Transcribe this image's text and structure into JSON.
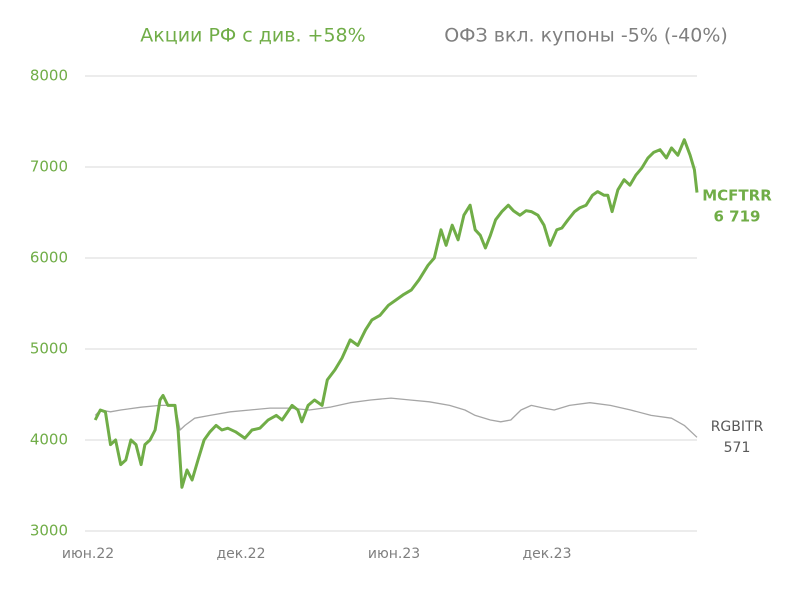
{
  "chart_data": {
    "type": "line",
    "xlim": [
      0,
      24
    ],
    "ylim": [
      3000,
      8000
    ],
    "xticks": [
      {
        "value": 0,
        "label": "июн.22"
      },
      {
        "value": 6,
        "label": "дек.22"
      },
      {
        "value": 12,
        "label": "июн.23"
      },
      {
        "value": 18,
        "label": "дек.23"
      }
    ],
    "yticks": [
      3000,
      4000,
      5000,
      6000,
      7000,
      8000
    ],
    "grid": true,
    "series": [
      {
        "name": "Акции РФ с див. +58%",
        "ticker": "MCFTRR",
        "last_label": "6 719",
        "color": "#70ad47",
        "width": 3,
        "x": [
          0.4,
          0.6,
          0.8,
          1.0,
          1.2,
          1.4,
          1.6,
          1.8,
          2.0,
          2.2,
          2.35,
          2.55,
          2.75,
          2.94,
          3.06,
          3.25,
          3.53,
          3.65,
          3.8,
          4.0,
          4.2,
          4.43,
          4.67,
          4.9,
          5.14,
          5.37,
          5.6,
          5.9,
          6.27,
          6.55,
          6.86,
          7.18,
          7.5,
          7.73,
          8.12,
          8.35,
          8.5,
          8.75,
          9.0,
          9.3,
          9.5,
          9.8,
          10.08,
          10.4,
          10.7,
          11.0,
          11.25,
          11.57,
          11.9,
          12.2,
          12.5,
          12.8,
          13.1,
          13.45,
          13.7,
          13.96,
          14.16,
          14.4,
          14.63,
          14.86,
          15.1,
          15.3,
          15.5,
          15.7,
          15.9,
          16.1,
          16.35,
          16.6,
          16.8,
          17.06,
          17.3,
          17.5,
          17.76,
          18.0,
          18.24,
          18.5,
          18.7,
          18.94,
          19.2,
          19.4,
          19.65,
          19.9,
          20.1,
          20.35,
          20.5,
          20.67,
          20.9,
          21.14,
          21.37,
          21.6,
          21.84,
          22.08,
          22.3,
          22.55,
          22.8,
          23.0,
          23.25,
          23.5,
          23.73,
          23.9,
          24.0
        ],
        "values": [
          4220,
          4330,
          4310,
          3950,
          4000,
          3730,
          3780,
          4000,
          3950,
          3730,
          3950,
          4000,
          4110,
          4440,
          4490,
          4380,
          4380,
          4110,
          3480,
          3670,
          3560,
          3780,
          4000,
          4090,
          4160,
          4110,
          4130,
          4090,
          4020,
          4110,
          4130,
          4220,
          4270,
          4220,
          4380,
          4330,
          4200,
          4380,
          4440,
          4380,
          4660,
          4770,
          4900,
          5100,
          5040,
          5210,
          5320,
          5370,
          5480,
          5540,
          5600,
          5650,
          5760,
          5920,
          6000,
          6310,
          6140,
          6360,
          6200,
          6470,
          6580,
          6310,
          6250,
          6110,
          6250,
          6420,
          6510,
          6580,
          6520,
          6470,
          6520,
          6510,
          6470,
          6360,
          6140,
          6310,
          6330,
          6420,
          6510,
          6550,
          6580,
          6690,
          6730,
          6690,
          6690,
          6510,
          6750,
          6860,
          6800,
          6910,
          6990,
          7100,
          7160,
          7190,
          7100,
          7210,
          7130,
          7300,
          7130,
          6970,
          6719
        ]
      },
      {
        "name": "ОФЗ вкл. купоны -5% (-40%)",
        "ticker": "RGBITR",
        "last_label": "571",
        "color": "#a6a6a6",
        "width": 1.3,
        "x": [
          0.4,
          0.6,
          1.0,
          1.4,
          2.2,
          2.94,
          3.53,
          3.73,
          3.92,
          4.3,
          4.9,
          5.7,
          6.47,
          7.25,
          8.04,
          8.8,
          9.6,
          10.4,
          11.2,
          12.0,
          12.75,
          13.5,
          14.3,
          14.9,
          15.3,
          15.9,
          16.3,
          16.7,
          17.1,
          17.5,
          18.0,
          18.4,
          19.0,
          19.8,
          20.6,
          21.4,
          22.2,
          23.0,
          23.5,
          24.0
        ],
        "values": [
          4270,
          4330,
          4310,
          4330,
          4360,
          4380,
          4380,
          4110,
          4160,
          4240,
          4270,
          4310,
          4330,
          4350,
          4350,
          4330,
          4360,
          4410,
          4440,
          4460,
          4440,
          4420,
          4380,
          4330,
          4270,
          4220,
          4200,
          4220,
          4330,
          4380,
          4350,
          4330,
          4380,
          4410,
          4380,
          4330,
          4270,
          4240,
          4160,
          4030
        ]
      }
    ]
  }
}
